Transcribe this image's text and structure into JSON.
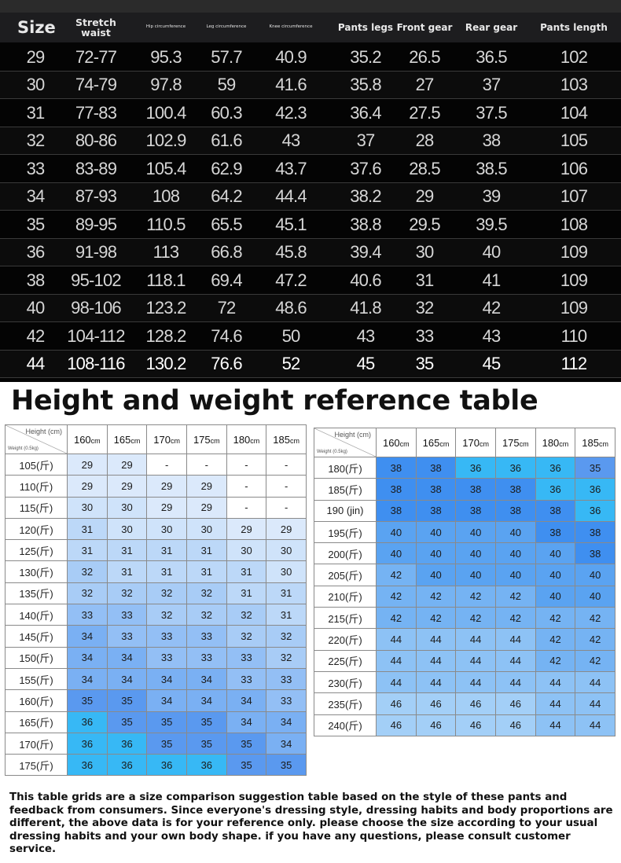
{
  "size_chart": {
    "headers": [
      {
        "text": "Size",
        "style": "big"
      },
      {
        "text": "Stretch waist",
        "style": "mid"
      },
      {
        "text": "Hip circumference",
        "style": "tiny"
      },
      {
        "text": "Leg circumference",
        "style": "tiny"
      },
      {
        "text": "Knee circumference",
        "style": "tiny"
      },
      {
        "text": "Pants legs",
        "style": "two"
      },
      {
        "text": "Front gear",
        "style": "two"
      },
      {
        "text": "Rear gear",
        "style": "two"
      },
      {
        "text": "Pants length",
        "style": "two"
      }
    ],
    "rows": [
      [
        "29",
        "72-77",
        "95.3",
        "57.7",
        "40.9",
        "35.2",
        "26.5",
        "36.5",
        "102"
      ],
      [
        "30",
        "74-79",
        "97.8",
        "59",
        "41.6",
        "35.8",
        "27",
        "37",
        "103"
      ],
      [
        "31",
        "77-83",
        "100.4",
        "60.3",
        "42.3",
        "36.4",
        "27.5",
        "37.5",
        "104"
      ],
      [
        "32",
        "80-86",
        "102.9",
        "61.6",
        "43",
        "37",
        "28",
        "38",
        "105"
      ],
      [
        "33",
        "83-89",
        "105.4",
        "62.9",
        "43.7",
        "37.6",
        "28.5",
        "38.5",
        "106"
      ],
      [
        "34",
        "87-93",
        "108",
        "64.2",
        "44.4",
        "38.2",
        "29",
        "39",
        "107"
      ],
      [
        "35",
        "89-95",
        "110.5",
        "65.5",
        "45.1",
        "38.8",
        "29.5",
        "39.5",
        "108"
      ],
      [
        "36",
        "91-98",
        "113",
        "66.8",
        "45.8",
        "39.4",
        "30",
        "40",
        "109"
      ],
      [
        "38",
        "95-102",
        "118.1",
        "69.4",
        "47.2",
        "40.6",
        "31",
        "41",
        "109"
      ],
      [
        "40",
        "98-106",
        "123.2",
        "72",
        "48.6",
        "41.8",
        "32",
        "42",
        "109"
      ],
      [
        "42",
        "104-112",
        "128.2",
        "74.6",
        "50",
        "43",
        "33",
        "43",
        "110"
      ],
      [
        "44",
        "108-116",
        "130.2",
        "76.6",
        "52",
        "45",
        "35",
        "45",
        "112"
      ]
    ]
  },
  "reference_title": "Height and weight reference table",
  "corner": {
    "height_label": "Height (cm)",
    "weight_label": "Weight (0.5kg)"
  },
  "height_columns": [
    "160",
    "165",
    "170",
    "175",
    "180",
    "185"
  ],
  "height_unit": "cm",
  "left_table": {
    "rows": [
      {
        "weight": "105(斤)",
        "values": [
          "29",
          "29",
          "-",
          "-",
          "-",
          "-"
        ]
      },
      {
        "weight": "110(斤)",
        "values": [
          "29",
          "29",
          "29",
          "29",
          "-",
          "-"
        ]
      },
      {
        "weight": "115(斤)",
        "values": [
          "30",
          "30",
          "29",
          "29",
          "-",
          "-"
        ]
      },
      {
        "weight": "120(斤)",
        "values": [
          "31",
          "30",
          "30",
          "30",
          "29",
          "29"
        ]
      },
      {
        "weight": "125(斤)",
        "values": [
          "31",
          "31",
          "31",
          "31",
          "30",
          "30"
        ]
      },
      {
        "weight": "130(斤)",
        "values": [
          "32",
          "31",
          "31",
          "31",
          "31",
          "30"
        ]
      },
      {
        "weight": "135(斤)",
        "values": [
          "32",
          "32",
          "32",
          "32",
          "31",
          "31"
        ]
      },
      {
        "weight": "140(斤)",
        "values": [
          "33",
          "33",
          "32",
          "32",
          "32",
          "31"
        ]
      },
      {
        "weight": "145(斤)",
        "values": [
          "34",
          "33",
          "33",
          "33",
          "32",
          "32"
        ]
      },
      {
        "weight": "150(斤)",
        "values": [
          "34",
          "34",
          "33",
          "33",
          "33",
          "32"
        ]
      },
      {
        "weight": "155(斤)",
        "values": [
          "34",
          "34",
          "34",
          "34",
          "33",
          "33"
        ]
      },
      {
        "weight": "160(斤)",
        "values": [
          "35",
          "35",
          "34",
          "34",
          "34",
          "33"
        ]
      },
      {
        "weight": "165(斤)",
        "values": [
          "36",
          "35",
          "35",
          "35",
          "34",
          "34"
        ]
      },
      {
        "weight": "170(斤)",
        "values": [
          "36",
          "36",
          "35",
          "35",
          "35",
          "34"
        ]
      },
      {
        "weight": "175(斤)",
        "values": [
          "36",
          "36",
          "36",
          "36",
          "35",
          "35"
        ]
      }
    ]
  },
  "right_table": {
    "rows": [
      {
        "weight": "180(斤)",
        "values": [
          "38",
          "38",
          "36",
          "36",
          "36",
          "35"
        ]
      },
      {
        "weight": "185(斤)",
        "values": [
          "38",
          "38",
          "38",
          "38",
          "36",
          "36"
        ]
      },
      {
        "weight": "190 (jin)",
        "values": [
          "38",
          "38",
          "38",
          "38",
          "38",
          "36"
        ]
      },
      {
        "weight": "195(斤)",
        "values": [
          "40",
          "40",
          "40",
          "40",
          "38",
          "38"
        ]
      },
      {
        "weight": "200(斤)",
        "values": [
          "40",
          "40",
          "40",
          "40",
          "40",
          "38"
        ]
      },
      {
        "weight": "205(斤)",
        "values": [
          "42",
          "40",
          "40",
          "40",
          "40",
          "40"
        ]
      },
      {
        "weight": "210(斤)",
        "values": [
          "42",
          "42",
          "42",
          "42",
          "40",
          "40"
        ]
      },
      {
        "weight": "215(斤)",
        "values": [
          "42",
          "42",
          "42",
          "42",
          "42",
          "42"
        ]
      },
      {
        "weight": "220(斤)",
        "values": [
          "44",
          "44",
          "44",
          "44",
          "42",
          "42"
        ]
      },
      {
        "weight": "225(斤)",
        "values": [
          "44",
          "44",
          "44",
          "44",
          "42",
          "42"
        ]
      },
      {
        "weight": "230(斤)",
        "values": [
          "44",
          "44",
          "44",
          "44",
          "44",
          "44"
        ]
      },
      {
        "weight": "235(斤)",
        "values": [
          "46",
          "46",
          "46",
          "46",
          "44",
          "44"
        ]
      },
      {
        "weight": "240(斤)",
        "values": [
          "46",
          "46",
          "46",
          "46",
          "44",
          "44"
        ]
      }
    ]
  },
  "size_colors": {
    "-": "#ffffff",
    "29": "#dbe9fb",
    "30": "#cfe3fa",
    "31": "#bcd8f8",
    "32": "#a8ccf6",
    "33": "#93bff5",
    "34": "#7ab0f3",
    "35": "#5a99ef",
    "36": "#37b8f5",
    "38": "#3f8ff0",
    "40": "#5aa3f1",
    "42": "#75b3f3",
    "44": "#8dc2f5",
    "46": "#a3cff7"
  },
  "disclaimer": "This table grids are a size comparison suggestion table based on the style of these pants and feedback from consumers. Since everyone's dressing style, dressing habits and body proportions are different, the above data is for your reference only. please choose the size according to your usual dressing habits and your own body shape. if you have any questions, please consult customer service."
}
